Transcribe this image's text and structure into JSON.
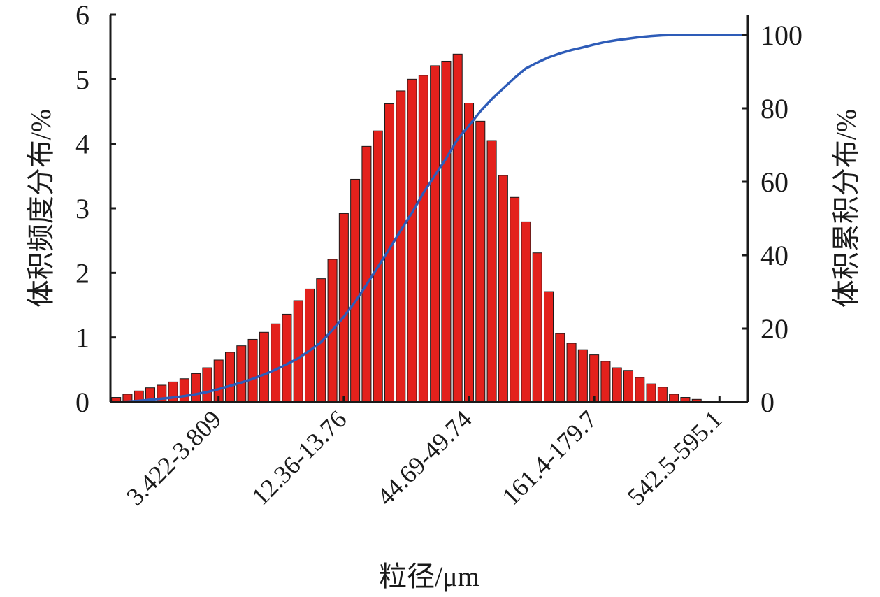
{
  "chart_data": {
    "type": "bar",
    "ylabel": "体积频度分布/%",
    "y2label": "体积累积分布/%",
    "xlabel": "粒径/μm",
    "ylim": [
      0,
      6
    ],
    "y2lim": [
      0,
      100
    ],
    "y_ticks": [
      "0",
      "1",
      "2",
      "3",
      "4",
      "5",
      "6"
    ],
    "y2_ticks": [
      "0",
      "20",
      "40",
      "60",
      "80",
      "100"
    ],
    "x_tick_labels": [
      {
        "bin": 9,
        "label": "3.422-3.809"
      },
      {
        "bin": 20,
        "label": "12.36-13.76"
      },
      {
        "bin": 31,
        "label": "44.69-49.74"
      },
      {
        "bin": 42,
        "label": "161.4-179.7"
      },
      {
        "bin": 53,
        "label": "542.5-595.1"
      }
    ],
    "series": [
      {
        "kind": "bar",
        "color": "#e3211c",
        "values": [
          0.07,
          0.12,
          0.17,
          0.22,
          0.26,
          0.31,
          0.36,
          0.44,
          0.53,
          0.65,
          0.77,
          0.87,
          0.97,
          1.08,
          1.21,
          1.36,
          1.57,
          1.75,
          1.91,
          2.21,
          2.92,
          3.45,
          3.96,
          4.2,
          4.62,
          4.82,
          5.0,
          5.06,
          5.21,
          5.28,
          5.39,
          4.63,
          4.35,
          4.05,
          3.51,
          3.17,
          2.79,
          2.31,
          1.71,
          1.06,
          0.91,
          0.81,
          0.73,
          0.63,
          0.53,
          0.49,
          0.38,
          0.28,
          0.23,
          0.12,
          0.07,
          0.04,
          0.01,
          0,
          0,
          0
        ]
      },
      {
        "kind": "line",
        "axis": "right",
        "color": "#2e5cb8",
        "values": [
          0,
          0.1,
          0.3,
          0.6,
          0.9,
          1.2,
          1.6,
          2.1,
          2.7,
          3.5,
          4.4,
          5.3,
          6.3,
          7.5,
          8.8,
          10.3,
          11.9,
          14.0,
          16.3,
          19.6,
          23.2,
          27.3,
          32.0,
          36.8,
          41.7,
          46.7,
          51.6,
          57.0,
          61.7,
          66.4,
          71.6,
          75.3,
          79.2,
          82.5,
          85.4,
          88.3,
          90.9,
          92.5,
          93.9,
          95.0,
          95.9,
          96.6,
          97.4,
          98.1,
          98.6,
          99.0,
          99.4,
          99.7,
          99.9,
          100,
          100,
          100,
          100,
          100,
          100,
          100
        ]
      }
    ]
  }
}
